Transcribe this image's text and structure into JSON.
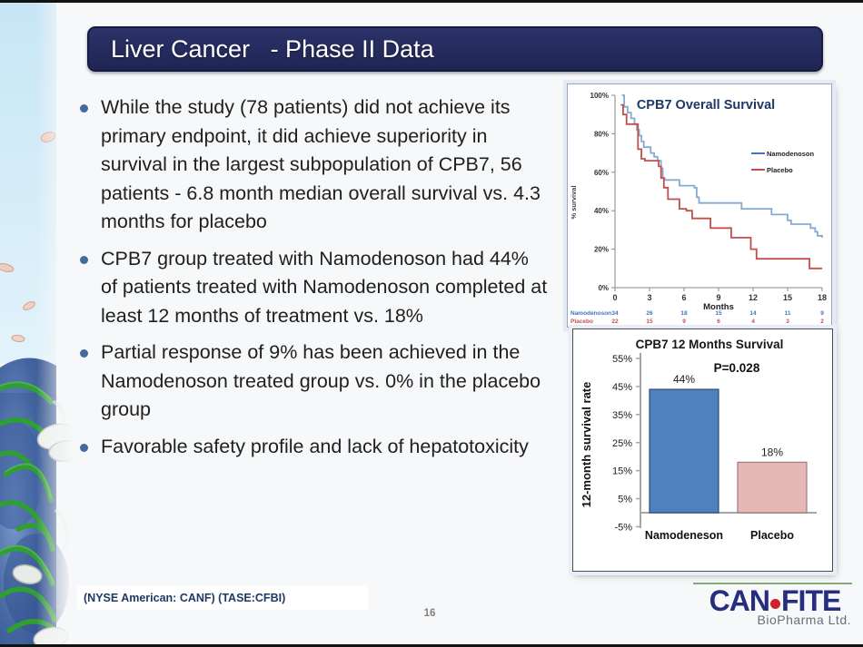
{
  "slide": {
    "title": "Liver Cancer   - Phase II Data",
    "page_number": "16",
    "ticker_line": "(NYSE American: CANF) (TASE:CFBI)",
    "logo": {
      "part1": "CAN",
      "part2": "FITE",
      "subtitle": "BioPharma Ltd."
    }
  },
  "colors": {
    "title_bar_navy": "#232a5e",
    "bullet_dot_blue": "#44699d",
    "ticker_navy": "#1f3864",
    "logo_navy": "#272e7f",
    "logo_dot_red": "#cf2030",
    "namodenoson_blue": "#85abd3",
    "placebo_red": "#c0504d",
    "bar_blue": "#4f81bd",
    "bar_pink": "#e5b8b7"
  },
  "bullets": [
    "While the study (78 patients) did not achieve its primary endpoint, it did achieve superiority in survival in the largest subpopulation of CPB7, 56 patients - 6.8 month median overall survival vs. 4.3 months for placebo",
    "CPB7 group treated with Namodenoson had 44% of patients treated with Namodenoson completed at least 12 months of treatment vs. 18%",
    "Partial response of 9% has been achieved in the Namodenoson treated group vs. 0% in the placebo group",
    "Favorable safety profile and lack of hepatotoxicity"
  ],
  "chart_data": [
    {
      "type": "line",
      "variant": "kaplan-meier-step",
      "title": "CPB7 Overall Survival",
      "xlabel": "Months",
      "ylabel": "% survival",
      "xlim": [
        0,
        18
      ],
      "ylim": [
        0,
        100
      ],
      "x_ticks": [
        0,
        3,
        6,
        9,
        12,
        15,
        18
      ],
      "y_ticks_pct": [
        100,
        80,
        60,
        40,
        20,
        0
      ],
      "legend_position": "right",
      "series": [
        {
          "name": "Namodenoson",
          "color": "#85abd3",
          "legend_color": "#4472c4",
          "steps": [
            [
              0.6,
              100
            ],
            [
              0.8,
              94
            ],
            [
              1.1,
              91
            ],
            [
              1.4,
              88
            ],
            [
              1.7,
              85
            ],
            [
              1.9,
              82
            ],
            [
              2.1,
              79
            ],
            [
              2.3,
              76
            ],
            [
              2.5,
              73
            ],
            [
              3.1,
              70
            ],
            [
              3.4,
              68
            ],
            [
              3.7,
              66
            ],
            [
              4.0,
              62
            ],
            [
              4.15,
              57
            ],
            [
              4.3,
              56
            ],
            [
              5.6,
              53
            ],
            [
              6.9,
              52
            ],
            [
              7.1,
              47
            ],
            [
              7.3,
              44
            ],
            [
              11.0,
              41
            ],
            [
              13.6,
              38
            ],
            [
              15.0,
              35
            ],
            [
              15.3,
              33
            ],
            [
              17.0,
              31
            ],
            [
              17.4,
              29
            ],
            [
              17.6,
              27
            ],
            [
              18,
              26
            ]
          ]
        },
        {
          "name": "Placebo",
          "color": "#c0504d",
          "legend_color": "#c0504d",
          "steps": [
            [
              0.5,
              95
            ],
            [
              0.7,
              90
            ],
            [
              1.0,
              85
            ],
            [
              2.0,
              72
            ],
            [
              2.3,
              67
            ],
            [
              2.6,
              66
            ],
            [
              3.8,
              63
            ],
            [
              4.0,
              57
            ],
            [
              4.25,
              52
            ],
            [
              4.6,
              46
            ],
            [
              5.6,
              41
            ],
            [
              6.2,
              40
            ],
            [
              6.7,
              36
            ],
            [
              8.3,
              31
            ],
            [
              10.1,
              26
            ],
            [
              11.8,
              20
            ],
            [
              12.3,
              15
            ],
            [
              16.9,
              10
            ],
            [
              18,
              10
            ]
          ]
        }
      ],
      "at_risk": {
        "rows": [
          {
            "label": "Namodenoson",
            "color": "#4472c4",
            "counts": [
              34,
              26,
              18,
              15,
              14,
              11,
              9
            ]
          },
          {
            "label": "Placebo",
            "color": "#c0504d",
            "counts": [
              22,
              15,
              9,
              6,
              4,
              3,
              2
            ]
          }
        ]
      }
    },
    {
      "type": "bar",
      "title": "CPB7 12 Months Survival",
      "ylabel": "12-month survival rate",
      "categories": [
        "Namodeneson",
        "Placebo"
      ],
      "values": [
        44,
        18
      ],
      "value_labels": [
        "44%",
        "18%"
      ],
      "bar_colors": [
        "#4f81bd",
        "#e5b8b7"
      ],
      "bar_borders": [
        "#2e4e7e",
        "#a07c7a"
      ],
      "annotation": "P=0.028",
      "y_ticks": [
        "55%",
        "45%",
        "35%",
        "25%",
        "15%",
        "5%",
        "-5%"
      ],
      "ylim": [
        -5,
        55
      ]
    }
  ]
}
